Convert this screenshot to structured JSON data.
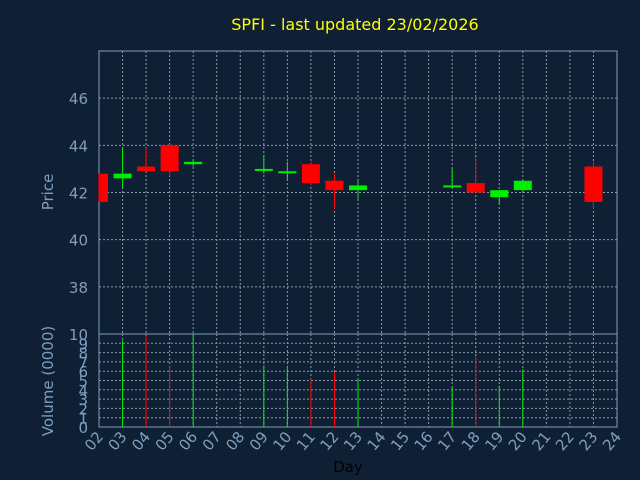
{
  "chart_data": [
    {
      "type": "candlestick",
      "title": "SPFI - last updated 23/02/2026",
      "ylabel": "Price",
      "ylim": [
        36,
        48
      ],
      "yticks": [
        38,
        40,
        42,
        44,
        46
      ],
      "grid": true,
      "x_ticks": [
        "02",
        "03",
        "04",
        "05",
        "06",
        "07",
        "08",
        "09",
        "10",
        "11",
        "12",
        "13",
        "14",
        "15",
        "16",
        "17",
        "18",
        "19",
        "20",
        "21",
        "22",
        "23",
        "24"
      ],
      "candles": [
        {
          "day": "02",
          "open": 42.8,
          "high": 42.8,
          "low": 41.6,
          "close": 41.6
        },
        {
          "day": "03",
          "open": 42.6,
          "high": 43.9,
          "low": 42.2,
          "close": 42.8
        },
        {
          "day": "04",
          "open": 43.1,
          "high": 43.9,
          "low": 42.9,
          "close": 42.9
        },
        {
          "day": "05",
          "open": 44.0,
          "high": 44.0,
          "low": 42.7,
          "close": 42.9
        },
        {
          "day": "06",
          "open": 43.2,
          "high": 43.4,
          "low": 43.1,
          "close": 43.3
        },
        {
          "day": "09",
          "open": 43.0,
          "high": 43.6,
          "low": 42.8,
          "close": 43.0
        },
        {
          "day": "10",
          "open": 42.9,
          "high": 43.3,
          "low": 42.5,
          "close": 42.9
        },
        {
          "day": "11",
          "open": 43.2,
          "high": 43.3,
          "low": 42.3,
          "close": 42.4
        },
        {
          "day": "12",
          "open": 42.5,
          "high": 42.8,
          "low": 41.3,
          "close": 42.1
        },
        {
          "day": "13",
          "open": 42.1,
          "high": 42.5,
          "low": 41.7,
          "close": 42.3
        },
        {
          "day": "17",
          "open": 42.3,
          "high": 43.0,
          "low": 42.3,
          "close": 42.3
        },
        {
          "day": "18",
          "open": 42.4,
          "high": 43.5,
          "low": 42.0,
          "close": 42.0
        },
        {
          "day": "19",
          "open": 41.8,
          "high": 42.1,
          "low": 41.5,
          "close": 42.1
        },
        {
          "day": "20",
          "open": 42.1,
          "high": 42.5,
          "low": 42.0,
          "close": 42.5
        },
        {
          "day": "23",
          "open": 43.1,
          "high": 43.3,
          "low": 41.3,
          "close": 41.6
        }
      ]
    },
    {
      "type": "bar",
      "ylabel": "Volume (0000)",
      "xlabel": "Day",
      "ylim": [
        0,
        10
      ],
      "yticks": [
        0,
        1,
        2,
        3,
        4,
        5,
        6,
        7,
        8,
        9,
        10
      ],
      "grid": true,
      "x_ticks": [
        "02",
        "03",
        "04",
        "05",
        "06",
        "07",
        "08",
        "09",
        "10",
        "11",
        "12",
        "13",
        "14",
        "15",
        "16",
        "17",
        "18",
        "19",
        "20",
        "21",
        "22",
        "23",
        "24"
      ],
      "bars": [
        {
          "day": "03",
          "value": 9.3
        },
        {
          "day": "04",
          "value": 9.8
        },
        {
          "day": "05",
          "value": 6.6
        },
        {
          "day": "06",
          "value": 10.0
        },
        {
          "day": "09",
          "value": 6.6
        },
        {
          "day": "10",
          "value": 6.4
        },
        {
          "day": "11",
          "value": 5.2
        },
        {
          "day": "12",
          "value": 5.9
        },
        {
          "day": "13",
          "value": 5.2
        },
        {
          "day": "17",
          "value": 4.3
        },
        {
          "day": "18",
          "value": 7.6
        },
        {
          "day": "19",
          "value": 4.4
        },
        {
          "day": "20",
          "value": 6.2
        }
      ]
    }
  ],
  "colors": {
    "background": "#0f2035",
    "plot_border": "#7f9fbf",
    "grid": "#8899aa",
    "title": "#ffff00",
    "axis_text": "#7f9fbf",
    "xlabel": "#000000",
    "up": "#00ee00",
    "down": "#ff0000"
  }
}
